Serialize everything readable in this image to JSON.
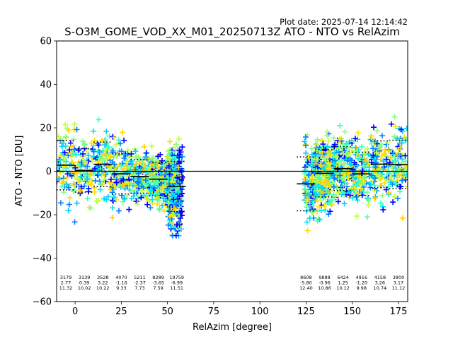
{
  "figure": {
    "plot_date": "Plot date: 2025-07-14 12:14:42",
    "title": "S-O3M_GOME_VOD_XX_M01_20250713Z ATO - NTO vs RelAzim"
  },
  "colors": {
    "scatter_palette": [
      "#0000ff",
      "#0080ff",
      "#00ccff",
      "#00e5ee",
      "#40ffbf",
      "#80ff80",
      "#c0ff40",
      "#ffe000",
      "#ffd000"
    ],
    "mean_line": "#000000",
    "std_line": "#000000",
    "zero_line": "#000000"
  },
  "chart_data": {
    "type": "scatter",
    "xlabel": "RelAzim [degree]",
    "ylabel": "ATO - NTO [DU]",
    "xlim": [
      -10,
      180
    ],
    "ylim": [
      -60,
      60
    ],
    "xticks": [
      0,
      25,
      50,
      75,
      100,
      125,
      150,
      175
    ],
    "yticks": [
      -60,
      -40,
      -20,
      0,
      20,
      40,
      60
    ],
    "grid": false,
    "legend": "none",
    "reference_line_y": 0,
    "bins": [
      {
        "x0": -10,
        "x1": 0,
        "count": "3179",
        "mean": "2.77",
        "std": "11.32"
      },
      {
        "x0": 0,
        "x1": 10,
        "count": "3139",
        "mean": "0.39",
        "std": "10.02"
      },
      {
        "x0": 10,
        "x1": 20,
        "count": "3528",
        "mean": "3.22",
        "std": "10.22"
      },
      {
        "x0": 20,
        "x1": 30,
        "count": "4070",
        "mean": "-1.16",
        "std": "9.33"
      },
      {
        "x0": 30,
        "x1": 40,
        "count": "5211",
        "mean": "-2.37",
        "std": "7.73"
      },
      {
        "x0": 40,
        "x1": 50,
        "count": "8289",
        "mean": "-3.65",
        "std": "7.59"
      },
      {
        "x0": 50,
        "x1": 60,
        "count": "19759",
        "mean": "-6.99",
        "std": "11.51"
      },
      {
        "x0": 120,
        "x1": 130,
        "count": "8608",
        "mean": "-5.80",
        "std": "12.40"
      },
      {
        "x0": 130,
        "x1": 140,
        "count": "9888",
        "mean": "-0.96",
        "std": "10.86"
      },
      {
        "x0": 140,
        "x1": 150,
        "count": "6424",
        "mean": "1.25",
        "std": "10.12"
      },
      {
        "x0": 150,
        "x1": 160,
        "count": "4916",
        "mean": "-1.20",
        "std": "9.98"
      },
      {
        "x0": 160,
        "x1": 170,
        "count": "4158",
        "mean": "3.26",
        "std": "10.74"
      },
      {
        "x0": 170,
        "x1": 180,
        "count": "3800",
        "mean": "3.17",
        "std": "11.12"
      }
    ],
    "scatter_regions": [
      {
        "x0": -10,
        "x1": 58
      },
      {
        "x0": 124,
        "x1": 180
      }
    ]
  }
}
